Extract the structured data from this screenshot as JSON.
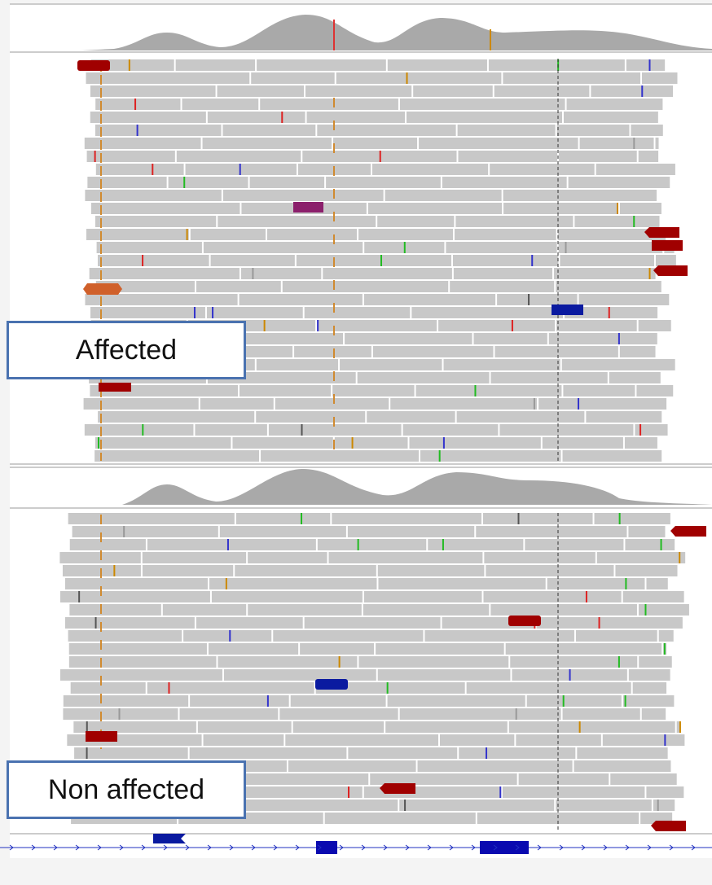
{
  "labels": {
    "affected": "Affected",
    "non_affected": "Non affected"
  }
}
